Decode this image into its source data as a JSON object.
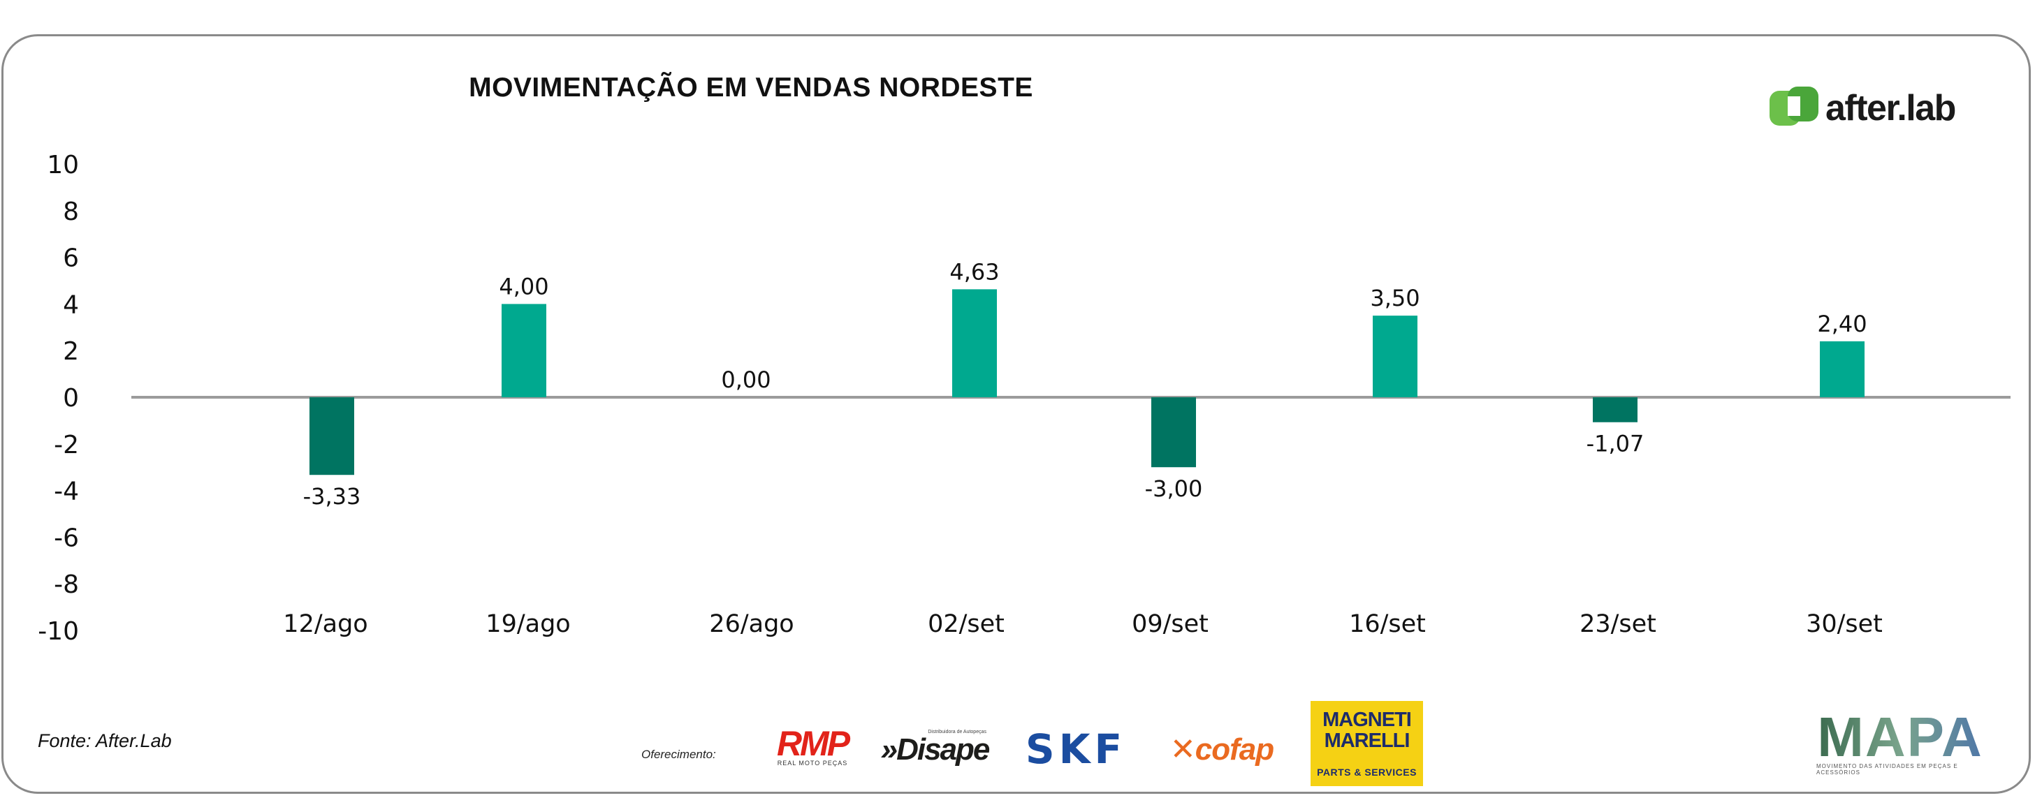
{
  "chart_data": {
    "type": "bar",
    "title": "MOVIMENTAÇÃO EM VENDAS NORDESTE",
    "categories": [
      "12/ago",
      "19/ago",
      "26/ago",
      "02/set",
      "09/set",
      "16/set",
      "23/set",
      "30/set"
    ],
    "values": [
      -3.33,
      4.0,
      0.0,
      4.63,
      -3.0,
      3.5,
      -1.07,
      2.4
    ],
    "data_labels": [
      "-3,33",
      "4,00",
      "0,00",
      "4,63",
      "-3,00",
      "3,50",
      "-1,07",
      "2,40"
    ],
    "y_ticks": [
      10,
      8,
      6,
      4,
      2,
      0,
      -2,
      -4,
      -6,
      -8,
      -10
    ],
    "ylim": [
      -10,
      10
    ],
    "xlabel": "",
    "ylabel": "",
    "grid": false,
    "colors": {
      "positive": "#00a98f",
      "negative": "#007461",
      "axis": "#9b9b9b"
    }
  },
  "branding": {
    "logo_text": "after.lab",
    "logo_color": "#6cc04a",
    "source": "Fonte: After.Lab",
    "sponsor_label": "Oferecimento:"
  },
  "sponsors": {
    "rmp": {
      "name": "RMP",
      "sub": "REAL MOTO PEÇAS"
    },
    "disape": {
      "name": "Disape",
      "sub": "Distribuidora de Autopeças"
    },
    "skf": {
      "name": "SKF"
    },
    "cofap": {
      "name": "cofap"
    },
    "magneti": {
      "line1": "MAGNETI",
      "line2": "MARELLI",
      "tag": "PARTS & SERVICES"
    },
    "mapa": {
      "name": "MAPA",
      "sub": "MOVIMENTO DAS ATIVIDADES EM PEÇAS E ACESSÓRIOS"
    }
  }
}
